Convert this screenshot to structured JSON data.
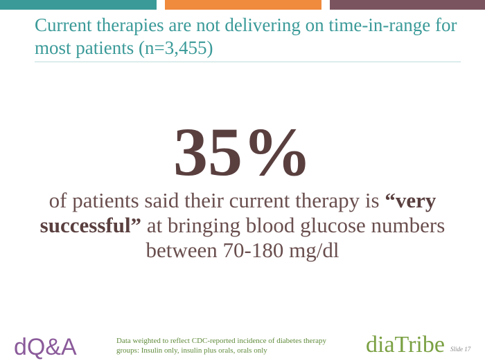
{
  "header": {
    "title": "Current therapies are not delivering on time-in-range for most patients (n=3,455)"
  },
  "stat": {
    "value": "35%",
    "statement": [
      {
        "text": "of patients said their current therapy is ",
        "bold": false
      },
      {
        "text": "“very successful”",
        "bold": true
      },
      {
        "text": " at bringing blood glucose numbers between 70-180 mg/dl",
        "bold": false
      }
    ]
  },
  "footer": {
    "left_logo": "dQ&A",
    "note": "Data weighted to reflect CDC-reported incidence of diabetes therapy groups: Insulin only, insulin plus orals, orals only",
    "right_logo": "diaTribe",
    "slide": "Slide 17"
  }
}
